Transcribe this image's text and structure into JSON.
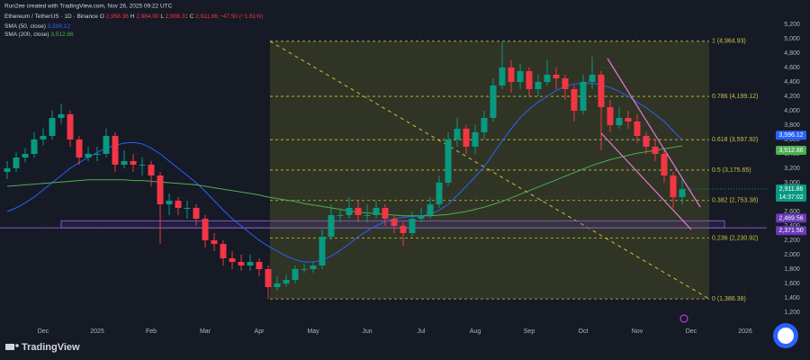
{
  "header": {
    "credit": "Run2ee created with TradingView.com, Nov 26, 2025 09:22 UTC",
    "symbol": "Ethereum / TetherUS · 1D · Binance",
    "ohlc": [
      {
        "key": "O",
        "text": "2,958.36"
      },
      {
        "key": "H",
        "text": "2,984.00"
      },
      {
        "key": "L",
        "text": "2,908.31"
      },
      {
        "key": "C",
        "text": "2,911.86"
      }
    ],
    "change": "−47.50 (−1.61%)"
  },
  "brand": "TradingView",
  "chart_data": {
    "type": "candlestick",
    "categories": [
      null,
      null,
      null,
      null,
      "Dec",
      null,
      null,
      null,
      null,
      null,
      "2025",
      null,
      null,
      null,
      null,
      null,
      "Feb",
      null,
      null,
      null,
      null,
      null,
      "Mar",
      null,
      null,
      null,
      null,
      null,
      "Apr",
      null,
      null,
      null,
      null,
      null,
      "May",
      null,
      null,
      null,
      null,
      null,
      "Jun",
      null,
      null,
      null,
      null,
      null,
      "Jul",
      null,
      null,
      null,
      null,
      null,
      "Aug",
      null,
      null,
      null,
      null,
      null,
      "Sep",
      null,
      null,
      null,
      null,
      null,
      "Oct",
      null,
      null,
      null,
      null,
      null,
      "Nov",
      null,
      null,
      null,
      null,
      null,
      "Dec",
      null,
      null,
      null,
      null,
      null,
      "2026"
    ],
    "open": [
      3150,
      3200,
      3350,
      3400,
      3600,
      3650,
      3900,
      3950,
      3600,
      3350,
      3400,
      3400,
      3650,
      3250,
      3300,
      3250,
      3250,
      3100,
      2700,
      2750,
      2650,
      2650,
      2500,
      2200,
      2150,
      1950,
      1900,
      1850,
      1900,
      1800,
      1550,
      1600,
      1650,
      1800,
      1800,
      1850,
      2250,
      2550,
      2550,
      2650,
      2550,
      2550,
      2650,
      2500,
      2400,
      2300,
      2500,
      2550,
      2700,
      3000,
      3600,
      3750,
      3500,
      3700,
      3900,
      4350,
      4600,
      4400,
      4550,
      4300,
      4400,
      4500,
      4450,
      4300,
      4000,
      4400,
      4500,
      4050,
      3800,
      3900,
      3850,
      3650,
      3500,
      3400,
      3100,
      2800,
      null,
      null,
      null,
      null,
      null,
      null,
      null
    ],
    "high": [
      3300,
      3420,
      3480,
      3700,
      3750,
      4000,
      4100,
      4000,
      3650,
      3500,
      3500,
      3750,
      3700,
      3450,
      3400,
      3350,
      3300,
      3150,
      2850,
      2800,
      2750,
      2700,
      2550,
      2300,
      2200,
      2050,
      2000,
      2000,
      1950,
      1850,
      1700,
      1720,
      1850,
      1880,
      1900,
      2350,
      2700,
      2650,
      2800,
      2750,
      2700,
      2750,
      2700,
      2550,
      2450,
      2600,
      2650,
      2800,
      3100,
      3700,
      3900,
      3800,
      3800,
      4000,
      4450,
      4950,
      4700,
      4650,
      4600,
      4500,
      4700,
      4600,
      4500,
      4350,
      4500,
      4750,
      4550,
      4150,
      4050,
      4000,
      3950,
      3700,
      3600,
      3450,
      3150,
      3050,
      null,
      null,
      null,
      null,
      null,
      null,
      null
    ],
    "low": [
      3050,
      3150,
      3280,
      3350,
      3520,
      3600,
      3820,
      3500,
      3250,
      3300,
      3300,
      3350,
      3150,
      3200,
      3150,
      3100,
      2950,
      2150,
      2550,
      2550,
      2500,
      2400,
      2100,
      2050,
      1850,
      1800,
      1780,
      1780,
      1700,
      1390,
      1500,
      1550,
      1600,
      1750,
      1750,
      1800,
      2200,
      2450,
      2500,
      2450,
      2450,
      2500,
      2400,
      2300,
      2120,
      2250,
      2450,
      2500,
      2650,
      2950,
      3500,
      3400,
      3400,
      3600,
      3850,
      4300,
      4250,
      4300,
      4200,
      4200,
      4350,
      4300,
      4150,
      3850,
      3950,
      4300,
      3450,
      3700,
      3750,
      3750,
      3550,
      3400,
      3300,
      3000,
      2650,
      2700,
      null,
      null,
      null,
      null,
      null,
      null,
      null
    ],
    "close": [
      3200,
      3350,
      3400,
      3600,
      3650,
      3900,
      3950,
      3600,
      3350,
      3400,
      3400,
      3650,
      3250,
      3300,
      3250,
      3250,
      3100,
      2700,
      2750,
      2650,
      2650,
      2500,
      2200,
      2150,
      1950,
      1900,
      1850,
      1900,
      1800,
      1550,
      1600,
      1650,
      1800,
      1800,
      1850,
      2250,
      2550,
      2550,
      2650,
      2550,
      2550,
      2650,
      2500,
      2400,
      2300,
      2500,
      2550,
      2700,
      3000,
      3600,
      3750,
      3500,
      3700,
      3900,
      4350,
      4600,
      4400,
      4550,
      4300,
      4400,
      4500,
      4450,
      4300,
      4000,
      4400,
      4500,
      4050,
      3800,
      3900,
      3850,
      3650,
      3500,
      3400,
      3100,
      2800,
      2911.86,
      null,
      null,
      null,
      null,
      null,
      null,
      null
    ],
    "up_color": "#089981",
    "down_color": "#f23645",
    "series": [
      {
        "name": "SMA (50, close)",
        "last": "3,596.12",
        "color": "#2962ff",
        "values": [
          2600,
          2650,
          2720,
          2800,
          2900,
          3000,
          3100,
          3200,
          3280,
          3350,
          3420,
          3480,
          3520,
          3550,
          3560,
          3540,
          3480,
          3400,
          3300,
          3200,
          3100,
          3000,
          2880,
          2750,
          2620,
          2500,
          2400,
          2300,
          2200,
          2120,
          2050,
          1980,
          1930,
          1900,
          1900,
          1920,
          1980,
          2060,
          2150,
          2250,
          2330,
          2400,
          2460,
          2500,
          2520,
          2530,
          2540,
          2560,
          2620,
          2700,
          2820,
          2950,
          3080,
          3220,
          3400,
          3580,
          3750,
          3900,
          4020,
          4120,
          4200,
          4280,
          4340,
          4370,
          4380,
          4380,
          4360,
          4320,
          4270,
          4200,
          4120,
          4040,
          3950,
          3850,
          3720,
          3596.12,
          null,
          null,
          null,
          null,
          null,
          null,
          null
        ]
      },
      {
        "name": "SMA (200, close)",
        "last": "3,512.86",
        "color": "#4caf50",
        "values": [
          2950,
          2960,
          2970,
          2980,
          2990,
          3000,
          3010,
          3020,
          3030,
          3040,
          3040,
          3040,
          3040,
          3040,
          3030,
          3030,
          3020,
          3010,
          3000,
          2990,
          2980,
          2970,
          2950,
          2930,
          2910,
          2890,
          2870,
          2850,
          2830,
          2800,
          2780,
          2760,
          2740,
          2710,
          2690,
          2670,
          2650,
          2630,
          2610,
          2590,
          2580,
          2570,
          2560,
          2550,
          2540,
          2540,
          2540,
          2540,
          2550,
          2560,
          2580,
          2600,
          2630,
          2660,
          2700,
          2740,
          2790,
          2840,
          2890,
          2940,
          2990,
          3040,
          3090,
          3140,
          3190,
          3240,
          3280,
          3320,
          3350,
          3380,
          3410,
          3430,
          3450,
          3470,
          3490,
          3512.86,
          null,
          null,
          null,
          null,
          null,
          null,
          null
        ]
      }
    ],
    "ylim": [
      1075,
      5475
    ],
    "yticks": [
      {
        "value": 1200,
        "label": "1,200"
      },
      {
        "value": 1400,
        "label": "1,400"
      },
      {
        "value": 1600,
        "label": "1,600"
      },
      {
        "value": 1800,
        "label": "1,800"
      },
      {
        "value": 2000,
        "label": "2,000"
      },
      {
        "value": 2200,
        "label": "2,200"
      },
      {
        "value": 2400,
        "label": "2,400"
      },
      {
        "value": 2600,
        "label": "2,600"
      },
      {
        "value": 2800,
        "label": "2,800"
      },
      {
        "value": 3000,
        "label": "3,000"
      },
      {
        "value": 3200,
        "label": "3,200"
      },
      {
        "value": 3400,
        "label": "3,400"
      },
      {
        "value": 3600,
        "label": "3,600"
      },
      {
        "value": 3800,
        "label": "3,800"
      },
      {
        "value": 4000,
        "label": "4,000"
      },
      {
        "value": 4200,
        "label": "4,200"
      },
      {
        "value": 4400,
        "label": "4,400"
      },
      {
        "value": 4600,
        "label": "4,600"
      },
      {
        "value": 4800,
        "label": "4,800"
      },
      {
        "value": 5000,
        "label": "5,000"
      },
      {
        "value": 5200,
        "label": "5,200"
      }
    ],
    "fib_levels": [
      {
        "value": 4964.93,
        "label": "1 (4,964.93)"
      },
      {
        "value": 4199.12,
        "label": "0.786 (4,199.12)"
      },
      {
        "value": 3597.92,
        "label": "0.618 (3,597.92)"
      },
      {
        "value": 3175.65,
        "label": "0.5 (3,175.65)"
      },
      {
        "value": 2753.38,
        "label": "0.382 (2,753.38)"
      },
      {
        "value": 2230.92,
        "label": "0.236 (2,230.92)"
      },
      {
        "value": 1386.38,
        "label": "0 (1,386.38)"
      }
    ],
    "zone": [
      {
        "value": 2469.56,
        "label": "2,469.56"
      },
      {
        "value": 2371.5,
        "label": "2,371.50"
      }
    ],
    "last_price": {
      "value": 2911.86,
      "label": "2,911.86",
      "countdown": "14:37:02"
    },
    "grid": true
  }
}
